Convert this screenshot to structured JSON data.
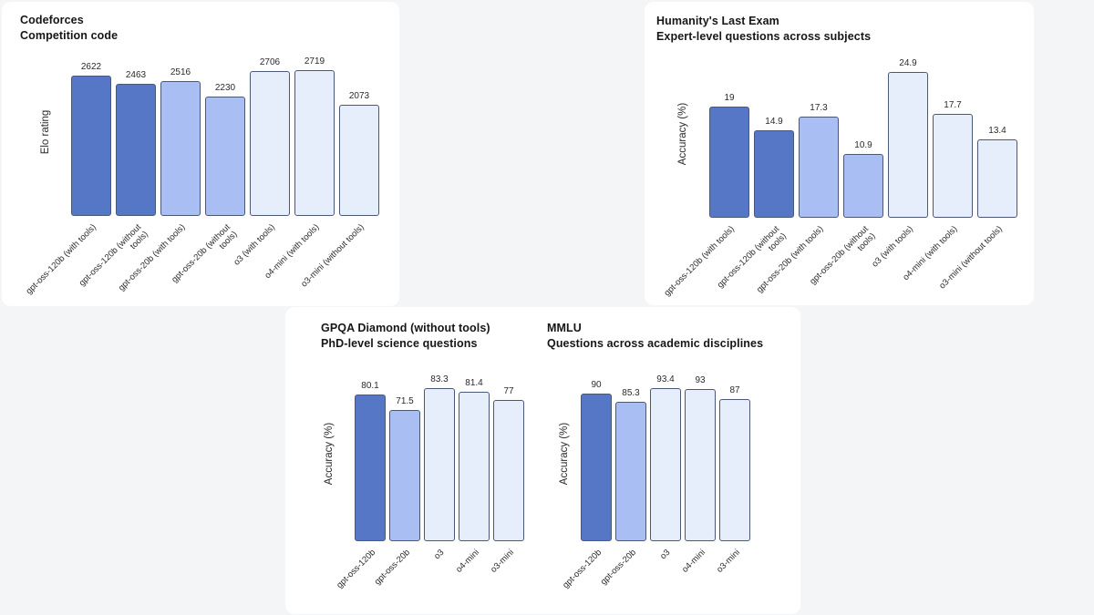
{
  "page": {
    "background": "#f4f5f7",
    "card_background": "#ffffff"
  },
  "palette": {
    "gpt_oss_120b": "#5577c6",
    "gpt_oss_20b": "#a9bff4",
    "reference_model": "#e7eefb",
    "bar_border": "#4a5775",
    "title_text": "#161616",
    "label_text": "#2a2a2a"
  },
  "chart_data": [
    {
      "type": "bar",
      "title": "Codeforces",
      "subtitle": "Competition code",
      "ylabel": "Elo rating",
      "xlabel": "",
      "grid": false,
      "legend": false,
      "baseline": 0,
      "categories": [
        "gpt-oss-120b (with tools)",
        "gpt-oss-120b (without\ntools)",
        "gpt-oss-20b (with tools)",
        "gpt-oss-20b (without\ntools)",
        "o3 (with tools)",
        "o4-mini (with tools)",
        "o3-mini (without tools)"
      ],
      "values": [
        2622,
        2463,
        2516,
        2230,
        2706,
        2719,
        2073
      ],
      "bar_colors": [
        "gpt_oss_120b",
        "gpt_oss_120b",
        "gpt_oss_20b",
        "gpt_oss_20b",
        "reference_model",
        "reference_model",
        "reference_model"
      ]
    },
    {
      "type": "bar",
      "title": "Humanity's Last Exam",
      "subtitle": "Expert-level questions across subjects",
      "ylabel": "Accuracy (%)",
      "xlabel": "",
      "grid": false,
      "legend": false,
      "baseline": 0,
      "categories": [
        "gpt-oss-120b (with tools)",
        "gpt-oss-120b (without\ntools)",
        "gpt-oss-20b (with tools)",
        "gpt-oss-20b (without\ntools)",
        "o3 (with tools)",
        "o4-mini (with tools)",
        "o3-mini (without tools)"
      ],
      "values": [
        19,
        14.9,
        17.3,
        10.9,
        24.9,
        17.7,
        13.4
      ],
      "bar_colors": [
        "gpt_oss_120b",
        "gpt_oss_120b",
        "gpt_oss_20b",
        "gpt_oss_20b",
        "reference_model",
        "reference_model",
        "reference_model"
      ]
    },
    {
      "type": "bar",
      "title": "GPQA Diamond (without tools)",
      "subtitle": "PhD-level science questions",
      "ylabel": "Accuracy (%)",
      "xlabel": "",
      "grid": false,
      "legend": false,
      "baseline": 0,
      "categories": [
        "gpt-oss-120b",
        "gpt-oss-20b",
        "o3",
        "o4-mini",
        "o3-mini"
      ],
      "values": [
        80.1,
        71.5,
        83.3,
        81.4,
        77
      ],
      "bar_colors": [
        "gpt_oss_120b",
        "gpt_oss_20b",
        "reference_model",
        "reference_model",
        "reference_model"
      ]
    },
    {
      "type": "bar",
      "title": "MMLU",
      "subtitle": "Questions across academic disciplines",
      "ylabel": "Accuracy (%)",
      "xlabel": "",
      "grid": false,
      "legend": false,
      "baseline": 0,
      "categories": [
        "gpt-oss-120b",
        "gpt-oss-20b",
        "o3",
        "o4-mini",
        "o3-mini"
      ],
      "values": [
        90,
        85.3,
        93.4,
        93,
        87
      ],
      "bar_colors": [
        "gpt_oss_120b",
        "gpt_oss_20b",
        "reference_model",
        "reference_model",
        "reference_model"
      ]
    }
  ]
}
